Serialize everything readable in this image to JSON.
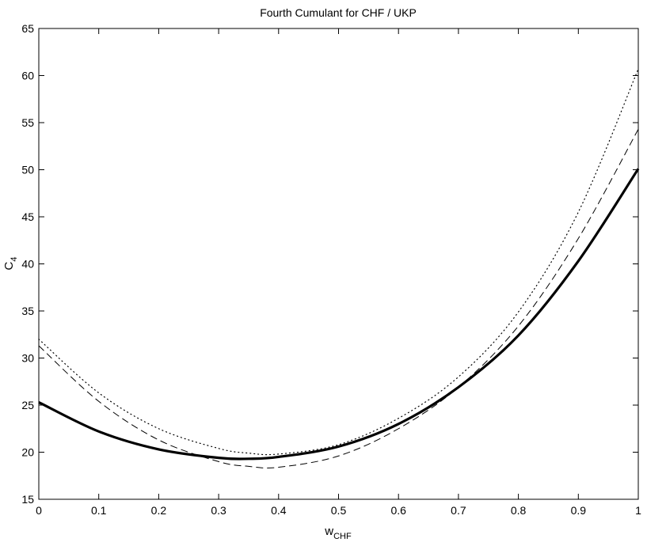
{
  "chart_data": {
    "type": "line",
    "title": "Fourth Cumulant for CHF / UKP",
    "xlabel": {
      "main": "w",
      "sub": "CHF"
    },
    "ylabel": {
      "main": "C",
      "sub": "4"
    },
    "xlim": [
      0,
      1
    ],
    "ylim": [
      15,
      65
    ],
    "xticks": [
      "0",
      "0.1",
      "0.2",
      "0.3",
      "0.4",
      "0.5",
      "0.6",
      "0.7",
      "0.8",
      "0.9",
      "1"
    ],
    "yticks": [
      "15",
      "20",
      "25",
      "30",
      "35",
      "40",
      "45",
      "50",
      "55",
      "60",
      "65"
    ],
    "grid": false,
    "x": [
      0,
      0.1,
      0.2,
      0.3,
      0.35,
      0.4,
      0.5,
      0.6,
      0.7,
      0.8,
      0.9,
      1.0
    ],
    "series": [
      {
        "style": "solid-thick",
        "color": "#000000",
        "values": [
          25.3,
          22.2,
          20.3,
          19.4,
          19.3,
          19.5,
          20.6,
          23.0,
          26.9,
          32.4,
          40.3,
          50.1
        ]
      },
      {
        "style": "dashed",
        "color": "#000000",
        "values": [
          31.3,
          25.4,
          21.3,
          19.0,
          18.5,
          18.4,
          19.6,
          22.5,
          26.9,
          33.4,
          42.7,
          54.3
        ]
      },
      {
        "style": "dotted",
        "color": "#000000",
        "values": [
          32.0,
          26.3,
          22.5,
          20.4,
          19.9,
          19.8,
          20.8,
          23.6,
          28.0,
          34.9,
          45.5,
          60.7
        ]
      }
    ]
  }
}
